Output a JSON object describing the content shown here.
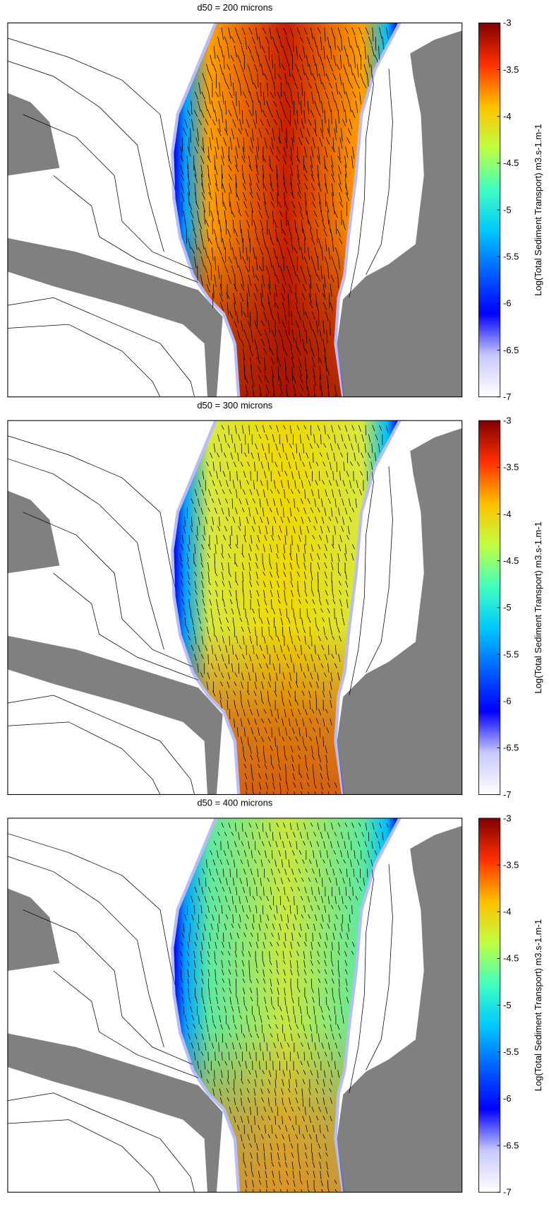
{
  "chart_data": [
    {
      "type": "heatmap",
      "title": "d50 = 200 microns",
      "colorbar_label": "Log(Total Sediment Transport)  m3.s-1.m-1",
      "clim": [
        -7,
        -3
      ],
      "cticks": [
        -3,
        -3.5,
        -4,
        -4.5,
        -5,
        -5.5,
        -6,
        -6.5,
        -7
      ],
      "colormap": [
        "#ffffff",
        "#c8c8ff",
        "#0000ff",
        "#0060ff",
        "#00c8ff",
        "#40ffc0",
        "#c0ff40",
        "#ffc000",
        "#ff3000",
        "#800000"
      ]
    },
    {
      "type": "heatmap",
      "title": "d50 = 300 microns",
      "colorbar_label": "Log(Total Sediment Transport)  m3.s-1.m-1",
      "clim": [
        -7,
        -3
      ],
      "cticks": [
        -3,
        -3.5,
        -4,
        -4.5,
        -5,
        -5.5,
        -6,
        -6.5,
        -7
      ],
      "colormap": [
        "#ffffff",
        "#c8c8ff",
        "#0000ff",
        "#0060ff",
        "#00c8ff",
        "#40ffc0",
        "#c0ff40",
        "#ffc000",
        "#ff3000",
        "#800000"
      ]
    },
    {
      "type": "heatmap",
      "title": "d50 = 400 microns",
      "colorbar_label": "Log(Total Sediment Transport)  m3.s-1.m-1",
      "clim": [
        -7,
        -3
      ],
      "cticks": [
        -3,
        -3.5,
        -4,
        -4.5,
        -5,
        -5.5,
        -6,
        -6.5,
        -7
      ],
      "colormap": [
        "#ffffff",
        "#c8c8ff",
        "#0000ff",
        "#0060ff",
        "#00c8ff",
        "#40ffc0",
        "#c0ff40",
        "#ffc000",
        "#ff3000",
        "#800000"
      ]
    }
  ]
}
